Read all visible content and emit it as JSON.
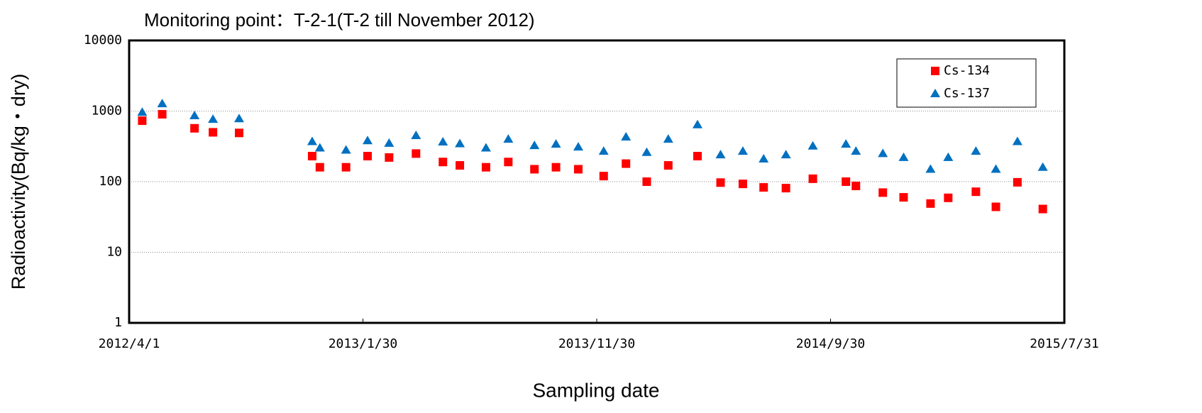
{
  "chart_data": {
    "type": "scatter",
    "title": "Monitoring point：T-2-1(T-2 till November 2012)",
    "x_label": "Sampling date",
    "y_label": "Radioactivity(Bq/kg・dry)",
    "log_y": true,
    "grid": true,
    "legend": "upper right",
    "xlim": [
      "2012/4/1",
      "2015/7/31"
    ],
    "xticks": [
      "2012/4/1",
      "2013/1/30",
      "2013/11/30",
      "2014/9/30",
      "2015/7/31"
    ],
    "ylim": [
      1,
      10000
    ],
    "yticks": [
      1,
      10,
      100,
      1000,
      10000
    ],
    "x": [
      "2012/4/18",
      "2012/5/14",
      "2012/6/25",
      "2012/7/19",
      "2012/8/22",
      "2012/11/25",
      "2012/12/5",
      "2013/1/8",
      "2013/2/5",
      "2013/3/5",
      "2013/4/9",
      "2013/5/14",
      "2013/6/5",
      "2013/7/9",
      "2013/8/7",
      "2013/9/10",
      "2013/10/8",
      "2013/11/6",
      "2013/12/9",
      "2014/1/7",
      "2014/2/3",
      "2014/3/3",
      "2014/4/10",
      "2014/5/10",
      "2014/6/8",
      "2014/7/5",
      "2014/8/3",
      "2014/9/7",
      "2014/10/20",
      "2014/11/2",
      "2014/12/7",
      "2015/1/3",
      "2015/2/7",
      "2015/3/2",
      "2015/4/7",
      "2015/5/3",
      "2015/5/31",
      "2015/7/3"
    ],
    "series": [
      {
        "name": "Cs-134",
        "color": "#ff0000",
        "marker": "square",
        "values": [
          730,
          900,
          570,
          500,
          490,
          230,
          160,
          160,
          230,
          220,
          250,
          190,
          170,
          160,
          190,
          150,
          160,
          150,
          120,
          180,
          100,
          170,
          230,
          97,
          93,
          83,
          81,
          110,
          100,
          87,
          70,
          60,
          49,
          59,
          72,
          44,
          98,
          41
        ]
      },
      {
        "name": "Cs-137",
        "color": "#0070c0",
        "marker": "triangle",
        "values": [
          960,
          1270,
          860,
          765,
          780,
          370,
          300,
          280,
          380,
          350,
          450,
          365,
          345,
          300,
          400,
          325,
          340,
          310,
          270,
          430,
          260,
          400,
          640,
          240,
          270,
          210,
          240,
          320,
          340,
          270,
          250,
          220,
          150,
          220,
          270,
          150,
          370,
          160
        ]
      }
    ]
  }
}
